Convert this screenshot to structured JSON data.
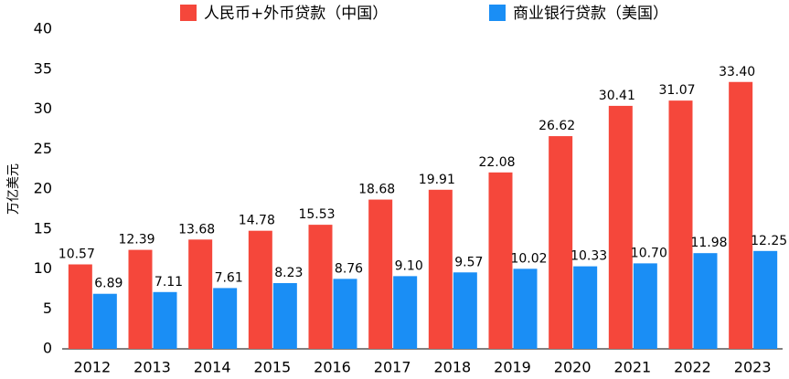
{
  "chart_data": {
    "type": "bar",
    "y_label": "万亿美元",
    "categories": [
      "2012",
      "2013",
      "2014",
      "2015",
      "2016",
      "2017",
      "2018",
      "2019",
      "2020",
      "2021",
      "2022",
      "2023"
    ],
    "series": [
      {
        "name": "人民币+外币贷款（中国）",
        "color": "#f5473b",
        "values": [
          10.57,
          12.39,
          13.68,
          14.78,
          15.53,
          18.68,
          19.91,
          22.08,
          26.62,
          30.41,
          31.07,
          33.4
        ],
        "value_labels": [
          "10.57",
          "12.39",
          "13.68",
          "14.78",
          "15.53",
          "18.68",
          "19.91",
          "22.08",
          "26.62",
          "30.41",
          "31.07",
          "33.40"
        ]
      },
      {
        "name": "商业银行贷款（美国）",
        "color": "#1a8ef5",
        "values": [
          6.89,
          7.11,
          7.61,
          8.23,
          8.76,
          9.1,
          9.57,
          10.02,
          10.33,
          10.7,
          11.98,
          12.25
        ],
        "value_labels": [
          "6.89",
          "7.11",
          "7.61",
          "8.23",
          "8.76",
          "9.10",
          "9.57",
          "10.02",
          "10.33",
          "10.70",
          "11.98",
          "12.25"
        ]
      }
    ],
    "ylim": [
      0,
      40
    ],
    "yticks": [
      0,
      5,
      10,
      15,
      20,
      25,
      30,
      35,
      40
    ],
    "grid": false,
    "legend": "top"
  }
}
